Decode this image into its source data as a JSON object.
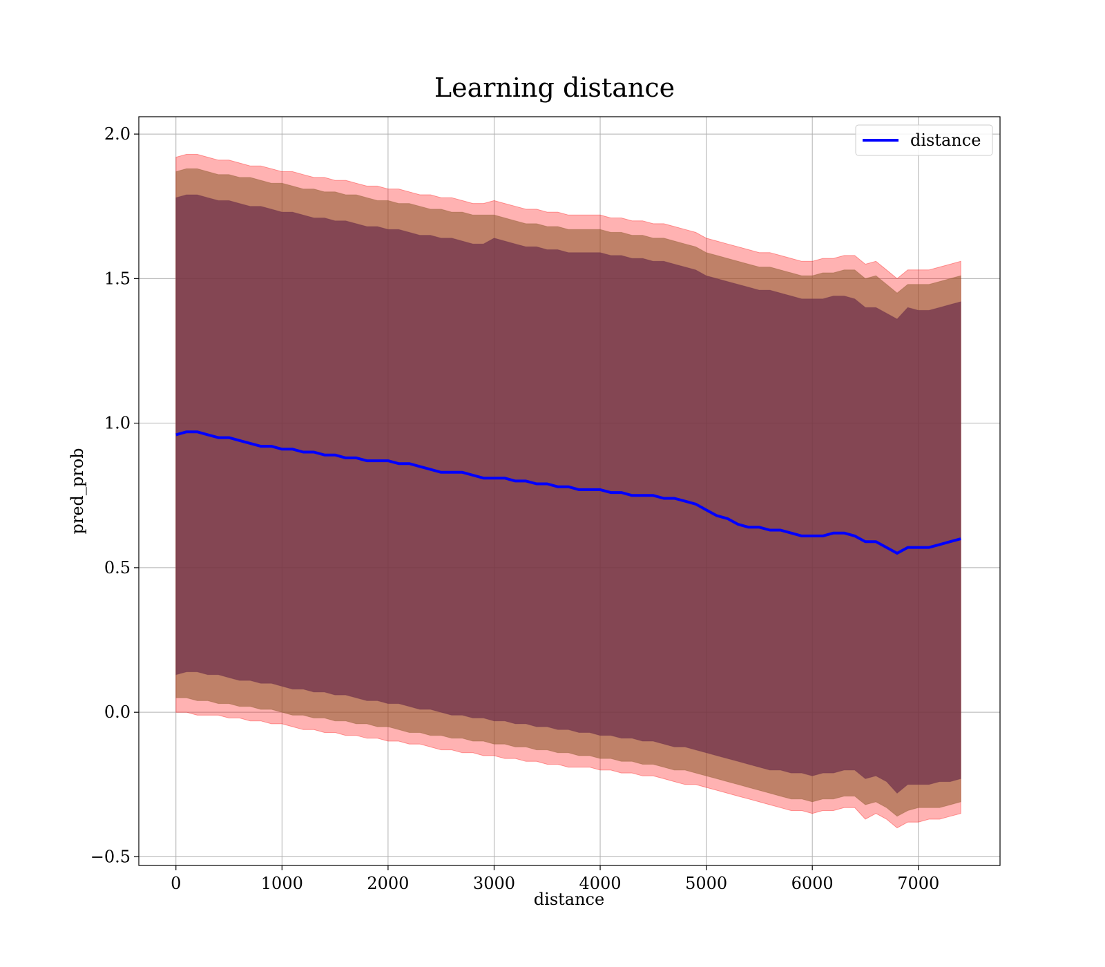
{
  "chart_data": {
    "type": "line",
    "title": "Learning distance",
    "xlabel": "distance",
    "ylabel": "pred_prob",
    "xlim": [
      -350,
      7770
    ],
    "ylim": [
      -0.53,
      2.06
    ],
    "xticks": [
      0,
      1000,
      2000,
      3000,
      4000,
      5000,
      6000,
      7000
    ],
    "xtick_labels": [
      "0",
      "1000",
      "2000",
      "3000",
      "4000",
      "5000",
      "6000",
      "7000"
    ],
    "yticks": [
      -0.5,
      0.0,
      0.5,
      1.0,
      1.5,
      2.0
    ],
    "ytick_labels": [
      "−0.5",
      "0.0",
      "0.5",
      "1.0",
      "1.5",
      "2.0"
    ],
    "grid": true,
    "legend": {
      "position": "top-right",
      "entries": [
        "distance"
      ]
    },
    "colors": {
      "line": "#0000ff",
      "outer_band": "#ff0000",
      "middle_band": "#8b5a2b",
      "inner_band": "#6b2d4a",
      "grid": "#b0b0b0"
    },
    "x": [
      0,
      100,
      200,
      300,
      400,
      500,
      600,
      700,
      800,
      900,
      1000,
      1100,
      1200,
      1300,
      1400,
      1500,
      1600,
      1700,
      1800,
      1900,
      2000,
      2100,
      2200,
      2300,
      2400,
      2500,
      2600,
      2700,
      2800,
      2900,
      3000,
      3100,
      3200,
      3300,
      3400,
      3500,
      3600,
      3700,
      3800,
      3900,
      4000,
      4100,
      4200,
      4300,
      4400,
      4500,
      4600,
      4700,
      4800,
      4900,
      5000,
      5100,
      5200,
      5300,
      5400,
      5500,
      5600,
      5700,
      5800,
      5900,
      6000,
      6100,
      6200,
      6300,
      6400,
      6500,
      6600,
      6700,
      6800,
      6900,
      7000,
      7100,
      7200,
      7300,
      7400
    ],
    "series": [
      {
        "name": "distance",
        "values": [
          0.96,
          0.97,
          0.97,
          0.96,
          0.95,
          0.95,
          0.94,
          0.93,
          0.92,
          0.92,
          0.91,
          0.91,
          0.9,
          0.9,
          0.89,
          0.89,
          0.88,
          0.88,
          0.87,
          0.87,
          0.87,
          0.86,
          0.86,
          0.85,
          0.84,
          0.83,
          0.83,
          0.83,
          0.82,
          0.81,
          0.81,
          0.81,
          0.8,
          0.8,
          0.79,
          0.79,
          0.78,
          0.78,
          0.77,
          0.77,
          0.77,
          0.76,
          0.76,
          0.75,
          0.75,
          0.75,
          0.74,
          0.74,
          0.73,
          0.72,
          0.7,
          0.68,
          0.67,
          0.65,
          0.64,
          0.64,
          0.63,
          0.63,
          0.62,
          0.61,
          0.61,
          0.61,
          0.62,
          0.62,
          0.61,
          0.59,
          0.59,
          0.57,
          0.55,
          0.57,
          0.57,
          0.57,
          0.58,
          0.59,
          0.6
        ]
      }
    ],
    "bands": [
      {
        "lower": [
          0.0,
          0.0,
          -0.01,
          -0.01,
          -0.01,
          -0.02,
          -0.02,
          -0.03,
          -0.03,
          -0.04,
          -0.04,
          -0.05,
          -0.06,
          -0.06,
          -0.07,
          -0.07,
          -0.08,
          -0.08,
          -0.09,
          -0.09,
          -0.1,
          -0.1,
          -0.11,
          -0.11,
          -0.12,
          -0.13,
          -0.13,
          -0.14,
          -0.14,
          -0.15,
          -0.15,
          -0.16,
          -0.16,
          -0.17,
          -0.17,
          -0.18,
          -0.18,
          -0.19,
          -0.19,
          -0.19,
          -0.2,
          -0.2,
          -0.21,
          -0.21,
          -0.22,
          -0.22,
          -0.23,
          -0.24,
          -0.25,
          -0.25,
          -0.26,
          -0.27,
          -0.28,
          -0.29,
          -0.3,
          -0.31,
          -0.32,
          -0.33,
          -0.34,
          -0.34,
          -0.35,
          -0.34,
          -0.34,
          -0.33,
          -0.33,
          -0.37,
          -0.35,
          -0.37,
          -0.4,
          -0.38,
          -0.38,
          -0.37,
          -0.37,
          -0.36,
          -0.35
        ],
        "upper": [
          1.92,
          1.93,
          1.93,
          1.92,
          1.91,
          1.91,
          1.9,
          1.89,
          1.89,
          1.88,
          1.87,
          1.87,
          1.86,
          1.85,
          1.85,
          1.84,
          1.84,
          1.83,
          1.82,
          1.82,
          1.81,
          1.81,
          1.8,
          1.79,
          1.79,
          1.78,
          1.78,
          1.77,
          1.76,
          1.76,
          1.77,
          1.76,
          1.75,
          1.74,
          1.74,
          1.73,
          1.73,
          1.72,
          1.72,
          1.72,
          1.72,
          1.71,
          1.71,
          1.7,
          1.7,
          1.69,
          1.69,
          1.68,
          1.67,
          1.66,
          1.64,
          1.63,
          1.62,
          1.61,
          1.6,
          1.59,
          1.59,
          1.58,
          1.57,
          1.56,
          1.56,
          1.57,
          1.57,
          1.58,
          1.58,
          1.55,
          1.56,
          1.53,
          1.5,
          1.53,
          1.53,
          1.53,
          1.54,
          1.55,
          1.56
        ]
      },
      {
        "lower": [
          0.05,
          0.05,
          0.04,
          0.04,
          0.03,
          0.03,
          0.02,
          0.02,
          0.01,
          0.01,
          0.0,
          -0.01,
          -0.01,
          -0.02,
          -0.02,
          -0.03,
          -0.03,
          -0.04,
          -0.04,
          -0.05,
          -0.05,
          -0.06,
          -0.07,
          -0.07,
          -0.08,
          -0.08,
          -0.09,
          -0.09,
          -0.1,
          -0.1,
          -0.11,
          -0.11,
          -0.12,
          -0.12,
          -0.13,
          -0.13,
          -0.14,
          -0.14,
          -0.15,
          -0.15,
          -0.16,
          -0.16,
          -0.17,
          -0.17,
          -0.18,
          -0.18,
          -0.19,
          -0.2,
          -0.2,
          -0.21,
          -0.22,
          -0.23,
          -0.24,
          -0.25,
          -0.26,
          -0.27,
          -0.28,
          -0.29,
          -0.3,
          -0.3,
          -0.31,
          -0.3,
          -0.3,
          -0.29,
          -0.29,
          -0.32,
          -0.31,
          -0.33,
          -0.36,
          -0.34,
          -0.33,
          -0.33,
          -0.33,
          -0.32,
          -0.31
        ],
        "upper": [
          1.87,
          1.88,
          1.88,
          1.87,
          1.86,
          1.86,
          1.85,
          1.85,
          1.84,
          1.83,
          1.83,
          1.82,
          1.81,
          1.81,
          1.8,
          1.8,
          1.79,
          1.79,
          1.78,
          1.77,
          1.77,
          1.76,
          1.76,
          1.75,
          1.74,
          1.74,
          1.73,
          1.73,
          1.72,
          1.72,
          1.72,
          1.71,
          1.7,
          1.69,
          1.69,
          1.68,
          1.68,
          1.67,
          1.67,
          1.67,
          1.67,
          1.66,
          1.66,
          1.65,
          1.65,
          1.64,
          1.64,
          1.63,
          1.62,
          1.61,
          1.59,
          1.58,
          1.57,
          1.56,
          1.55,
          1.54,
          1.54,
          1.53,
          1.52,
          1.51,
          1.51,
          1.52,
          1.52,
          1.53,
          1.53,
          1.5,
          1.51,
          1.48,
          1.45,
          1.48,
          1.48,
          1.48,
          1.49,
          1.5,
          1.51
        ]
      },
      {
        "lower": [
          0.13,
          0.14,
          0.14,
          0.13,
          0.13,
          0.12,
          0.11,
          0.11,
          0.1,
          0.1,
          0.09,
          0.08,
          0.08,
          0.07,
          0.07,
          0.06,
          0.06,
          0.05,
          0.04,
          0.04,
          0.03,
          0.03,
          0.02,
          0.01,
          0.01,
          0.0,
          -0.01,
          -0.01,
          -0.02,
          -0.02,
          -0.03,
          -0.03,
          -0.04,
          -0.04,
          -0.05,
          -0.05,
          -0.06,
          -0.06,
          -0.07,
          -0.07,
          -0.08,
          -0.08,
          -0.09,
          -0.09,
          -0.1,
          -0.1,
          -0.11,
          -0.12,
          -0.12,
          -0.13,
          -0.14,
          -0.15,
          -0.16,
          -0.17,
          -0.18,
          -0.19,
          -0.2,
          -0.2,
          -0.21,
          -0.21,
          -0.22,
          -0.21,
          -0.21,
          -0.2,
          -0.2,
          -0.23,
          -0.22,
          -0.24,
          -0.28,
          -0.25,
          -0.25,
          -0.25,
          -0.24,
          -0.24,
          -0.23
        ],
        "upper": [
          1.78,
          1.79,
          1.79,
          1.78,
          1.77,
          1.77,
          1.76,
          1.75,
          1.75,
          1.74,
          1.73,
          1.73,
          1.72,
          1.71,
          1.71,
          1.7,
          1.7,
          1.69,
          1.68,
          1.68,
          1.67,
          1.67,
          1.66,
          1.65,
          1.65,
          1.64,
          1.64,
          1.63,
          1.62,
          1.62,
          1.64,
          1.63,
          1.62,
          1.61,
          1.61,
          1.6,
          1.6,
          1.59,
          1.59,
          1.59,
          1.59,
          1.58,
          1.58,
          1.57,
          1.57,
          1.56,
          1.56,
          1.55,
          1.54,
          1.53,
          1.51,
          1.5,
          1.49,
          1.48,
          1.47,
          1.46,
          1.46,
          1.45,
          1.44,
          1.43,
          1.43,
          1.43,
          1.44,
          1.44,
          1.43,
          1.4,
          1.4,
          1.38,
          1.36,
          1.4,
          1.39,
          1.39,
          1.4,
          1.41,
          1.42
        ]
      }
    ]
  }
}
